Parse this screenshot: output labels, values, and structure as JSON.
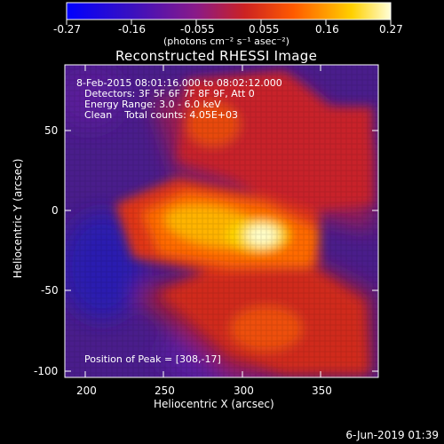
{
  "colorbar": {
    "ticks": [
      "-0.27",
      "-0.16",
      "-0.055",
      "0.055",
      "0.16",
      "0.27"
    ],
    "unit_label": "(photons cm⁻² s⁻¹ asec⁻²)"
  },
  "plot": {
    "title": "Reconstructed RHESSI Image",
    "xlabel": "Heliocentric X (arcsec)",
    "ylabel": "Heliocentric Y (arcsec)",
    "xticks": [
      "200",
      "250",
      "300",
      "350"
    ],
    "yticks": [
      "50",
      "0",
      "-50",
      "-100"
    ],
    "info": {
      "time": "8-Feb-2015 08:01:16.000 to 08:02:12.000",
      "detectors": "Detectors: 3F 5F 6F 7F 8F 9F, Att 0",
      "energy": "Energy Range: 3.0 - 6.0 keV",
      "clean": "Clean    Total counts: 4.05E+03",
      "peak": "Position of Peak = [308,-17]"
    }
  },
  "footer": {
    "date": "6-Jun-2019 01:39"
  },
  "colors": {
    "background": "#000000",
    "cmap": [
      "#0000ff",
      "#5a12b0",
      "#9a1a8a",
      "#d8241c",
      "#ff6a00",
      "#ffd500",
      "#ffffcc"
    ]
  }
}
